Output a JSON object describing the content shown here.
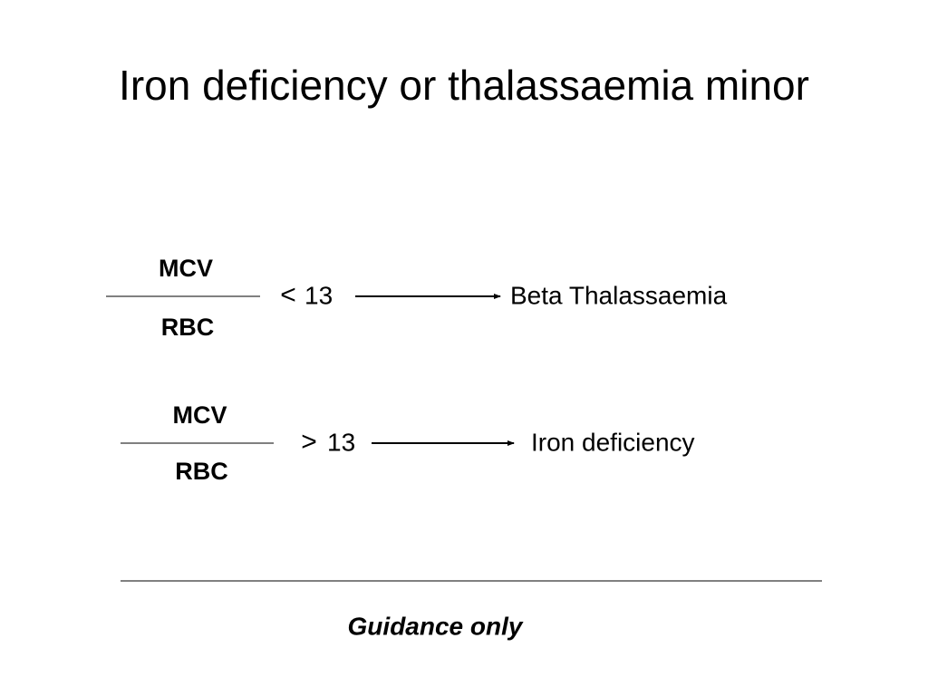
{
  "title": "Iron deficiency or thalassaemia minor",
  "rules": [
    {
      "numerator": "MCV",
      "denominator": "RBC",
      "operator": "<",
      "threshold": 13,
      "result": "Beta Thalassaemia"
    },
    {
      "numerator": "MCV",
      "denominator": "RBC",
      "operator": ">",
      "threshold": 13,
      "result": "Iron deficiency"
    }
  ],
  "footer": "Guidance only"
}
